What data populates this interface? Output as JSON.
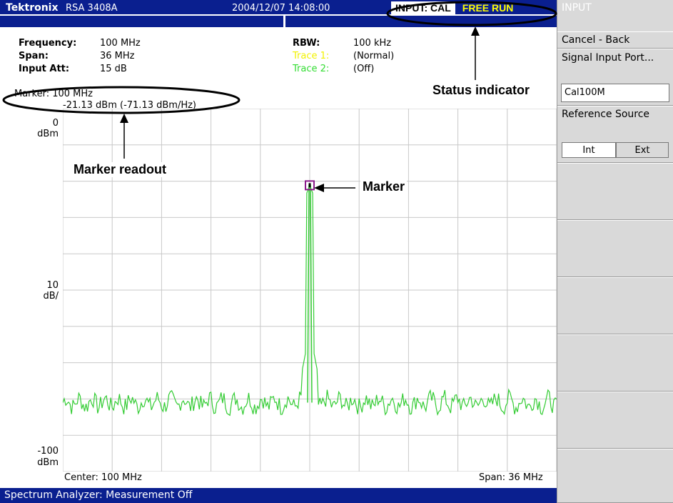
{
  "titlebar": {
    "brand": "Tektronix",
    "model": "RSA 3408A",
    "datetime": "2004/12/07 14:08:00",
    "input_status": "INPUT: CAL",
    "run_status": "FREE RUN"
  },
  "header": {
    "frequency_label": "Frequency:",
    "frequency_value": "100 MHz",
    "span_label": "Span:",
    "span_value": "36 MHz",
    "input_att_label": "Input Att:",
    "input_att_value": "15 dB",
    "rbw_label": "RBW:",
    "rbw_value": "100 kHz",
    "trace1_label": "Trace 1:",
    "trace1_value": "(Normal)",
    "trace2_label": "Trace 2:",
    "trace2_value": "(Off)"
  },
  "marker_readout": {
    "line1": "Marker: 100 MHz",
    "line2": "-21.13 dBm (-71.13 dBm/Hz)"
  },
  "axis": {
    "ref_level": "0",
    "ref_unit": "dBm",
    "scale_value": "10",
    "scale_unit": "dB/",
    "bottom_level": "-100",
    "bottom_unit": "dBm",
    "center": "Center: 100 MHz",
    "span": "Span: 36 MHz"
  },
  "chart_data": {
    "type": "line",
    "x_center_mhz": 100,
    "span_mhz": 36,
    "ylim": [
      -100,
      0
    ],
    "y_unit": "dBm",
    "grid": true,
    "noise_floor_dbm": -81,
    "peak": {
      "x_mhz": 100,
      "y_dbm": -21.13
    },
    "trace_color": "#33cc33",
    "marker_color": "#8b1a8b"
  },
  "bottombar": {
    "message": "Spectrum Analyzer: Measurement Off"
  },
  "softkeys": {
    "title": "INPUT",
    "cancel_back": "Cancel - Back",
    "signal_input_port": "Signal Input Port...",
    "signal_input_value": "Cal100M",
    "reference_source": "Reference Source",
    "int_label": "Int",
    "ext_label": "Ext"
  },
  "annotations": {
    "status_indicator": "Status indicator",
    "marker_readout": "Marker readout",
    "marker": "Marker"
  },
  "colors": {
    "titlebar_bg": "#0a1f8f",
    "trace1": "#f2f200",
    "trace2": "#33dd33",
    "trace": "#33cc33",
    "marker": "#8b1a8b",
    "grid": "#c8c8c8"
  }
}
